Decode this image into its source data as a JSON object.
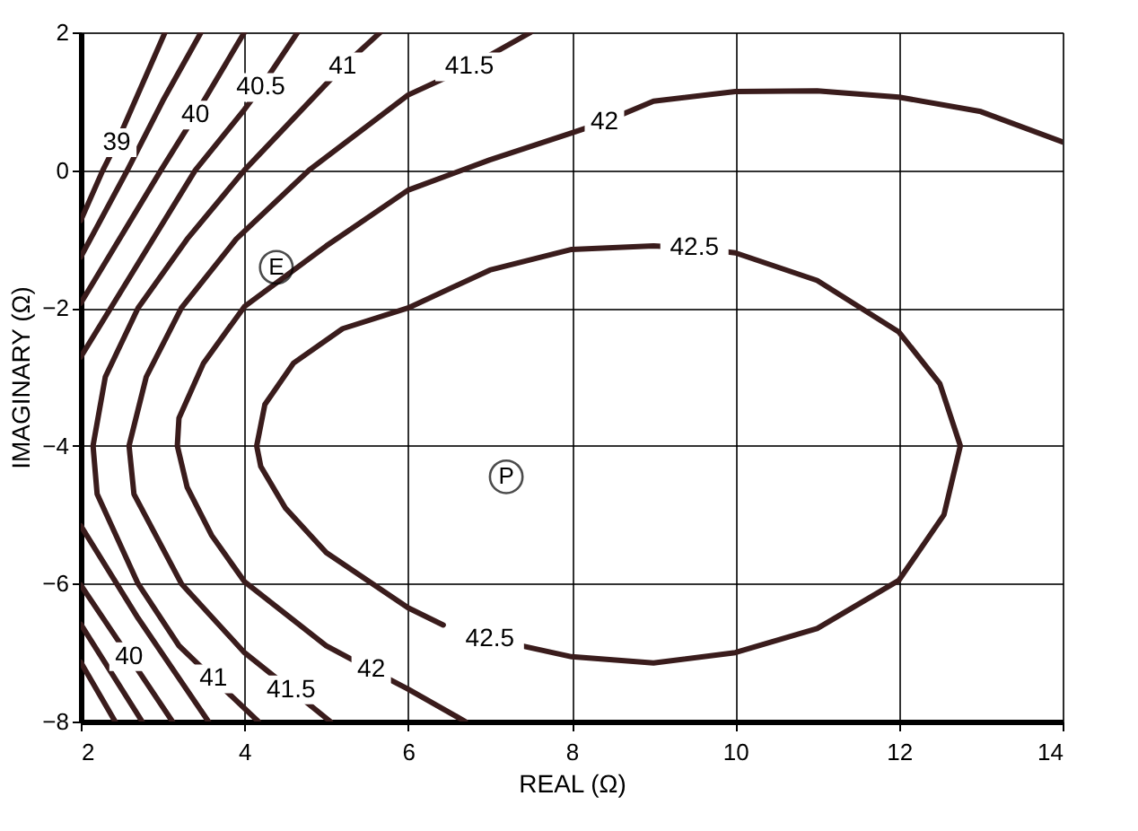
{
  "chart_data": {
    "type": "line",
    "xlabel": "REAL (Ω)",
    "ylabel": "IMAGINARY (Ω)",
    "xlim": [
      2,
      14
    ],
    "xticks": [
      2,
      4,
      6,
      8,
      10,
      12,
      14
    ],
    "ylim": [
      -8,
      2
    ],
    "yticks": [
      {
        "value": -8,
        "label": "−8"
      },
      {
        "value": -6,
        "label": "−6"
      },
      {
        "value": -4,
        "label": "−4"
      },
      {
        "value": -2,
        "label": "−2"
      },
      0,
      2
    ],
    "grid": true,
    "line_style": "solid",
    "marker": "none",
    "series": [
      {
        "color": "#3a1c1c",
        "x": [
          3.03,
          2.44,
          2.27,
          2.0
        ],
        "values": [
          2,
          0.4,
          0,
          -0.73
        ]
      },
      {
        "color": "#3a1c1c",
        "x": [
          3.47,
          3.0,
          2.57,
          2.0
        ],
        "values": [
          2,
          1.0,
          0,
          -1.26
        ]
      },
      {
        "color": "#3a1c1c",
        "x": [
          4.0,
          3.4,
          2.98,
          2.0
        ],
        "values": [
          2,
          0.8,
          0,
          -1.93
        ]
      },
      {
        "color": "#3a1c1c",
        "x": [
          4.65,
          4.2,
          4.0,
          3.4,
          2.0
        ],
        "values": [
          2,
          1.2,
          0.88,
          0,
          -2.71
        ]
      },
      {
        "color": "#3a1c1c",
        "x": [
          5.66,
          5.2,
          4.0,
          3.3,
          2.7,
          2.3,
          2.15,
          2.2,
          2.7,
          3.2,
          3.62,
          4.17
        ],
        "values": [
          2,
          1.5,
          0,
          -1.0,
          -2.0,
          -3.0,
          -4.0,
          -4.7,
          -6.0,
          -6.9,
          -7.38,
          -8
        ]
      },
      {
        "color": "#3a1c1c",
        "x": [
          7.5,
          6.75,
          6.0,
          4.79,
          3.9,
          3.23,
          2.8,
          2.59,
          2.65,
          3.23,
          4.0,
          4.57,
          5.05
        ],
        "values": [
          2,
          1.5,
          1.09,
          0,
          -1.0,
          -2.0,
          -3.0,
          -4.0,
          -4.7,
          -6.0,
          -7.0,
          -7.54,
          -8
        ]
      },
      {
        "color": "#3a1c1c",
        "x": [
          14,
          13,
          12,
          11,
          10,
          9,
          8.4,
          8,
          7,
          6,
          5,
          4,
          3.5,
          3.2,
          3.18,
          3.3,
          3.6,
          4,
          5,
          5.55,
          6,
          6.7
        ],
        "values": [
          0.41,
          0.85,
          1.06,
          1.15,
          1.14,
          1.0,
          0.7,
          0.54,
          0.15,
          -0.29,
          -1.1,
          -1.98,
          -2.8,
          -3.6,
          -4.0,
          -4.6,
          -5.3,
          -5.97,
          -6.9,
          -7.25,
          -7.53,
          -8
        ]
      },
      {
        "color": "#3a1c1c",
        "x": [
          9.5,
          10,
          11,
          12,
          12.5,
          12.75,
          12.55,
          12,
          11,
          10,
          9,
          8,
          7
        ],
        "values": [
          -1.13,
          -1.2,
          -1.6,
          -2.35,
          -3.1,
          -4,
          -5,
          -5.95,
          -6.65,
          -7.0,
          -7.15,
          -7.06,
          -6.8
        ]
      },
      {
        "color": "#3a1c1c",
        "x": [
          6.43,
          6,
          5,
          4.5,
          4.2,
          4.15,
          4.25,
          4.6,
          5.2,
          6,
          7,
          8,
          9,
          9.5
        ],
        "values": [
          -6.6,
          -6.35,
          -5.55,
          -4.9,
          -4.3,
          -4,
          -3.4,
          -2.8,
          -2.3,
          -2,
          -1.45,
          -1.15,
          -1.1,
          -1.13
        ]
      },
      {
        "color": "#3a1c1c",
        "x": [
          2.0,
          2.42
        ],
        "values": [
          -7.14,
          -8
        ]
      },
      {
        "color": "#3a1c1c",
        "x": [
          2.0,
          2.75
        ],
        "values": [
          -6.59,
          -8
        ]
      },
      {
        "color": "#3a1c1c",
        "x": [
          2.0,
          2.59,
          3.12
        ],
        "values": [
          -6.02,
          -7.06,
          -8
        ]
      },
      {
        "color": "#3a1c1c",
        "x": [
          2.0,
          2.7,
          3.56
        ],
        "values": [
          -5.16,
          -6.5,
          -8
        ]
      },
      {
        "type": "scatter",
        "name": "E",
        "marker": "circle",
        "color": "#000000",
        "x": [
          4.39
        ],
        "values": [
          -1.41
        ]
      },
      {
        "type": "scatter",
        "name": "P",
        "marker": "circle",
        "color": "#000000",
        "x": [
          7.2
        ],
        "values": [
          -4.45
        ]
      }
    ],
    "annotations": [
      {
        "text": "39",
        "x": 2.44,
        "y": 0.4
      },
      {
        "text": "40",
        "x": 3.4,
        "y": 0.8
      },
      {
        "text": "40.5",
        "x": 4.2,
        "y": 1.2
      },
      {
        "text": "41",
        "x": 5.2,
        "y": 1.5
      },
      {
        "text": "41.5",
        "x": 6.75,
        "y": 1.5
      },
      {
        "text": "42",
        "x": 8.4,
        "y": 0.7
      },
      {
        "text": "42.5",
        "x": 9.5,
        "y": -1.13
      },
      {
        "text": "40",
        "x": 2.59,
        "y": -7.06
      },
      {
        "text": "41",
        "x": 3.62,
        "y": -7.38
      },
      {
        "text": "41.5",
        "x": 4.57,
        "y": -7.54
      },
      {
        "text": "42",
        "x": 5.55,
        "y": -7.25
      },
      {
        "text": "42.5",
        "x": 7,
        "y": -6.8
      }
    ]
  }
}
